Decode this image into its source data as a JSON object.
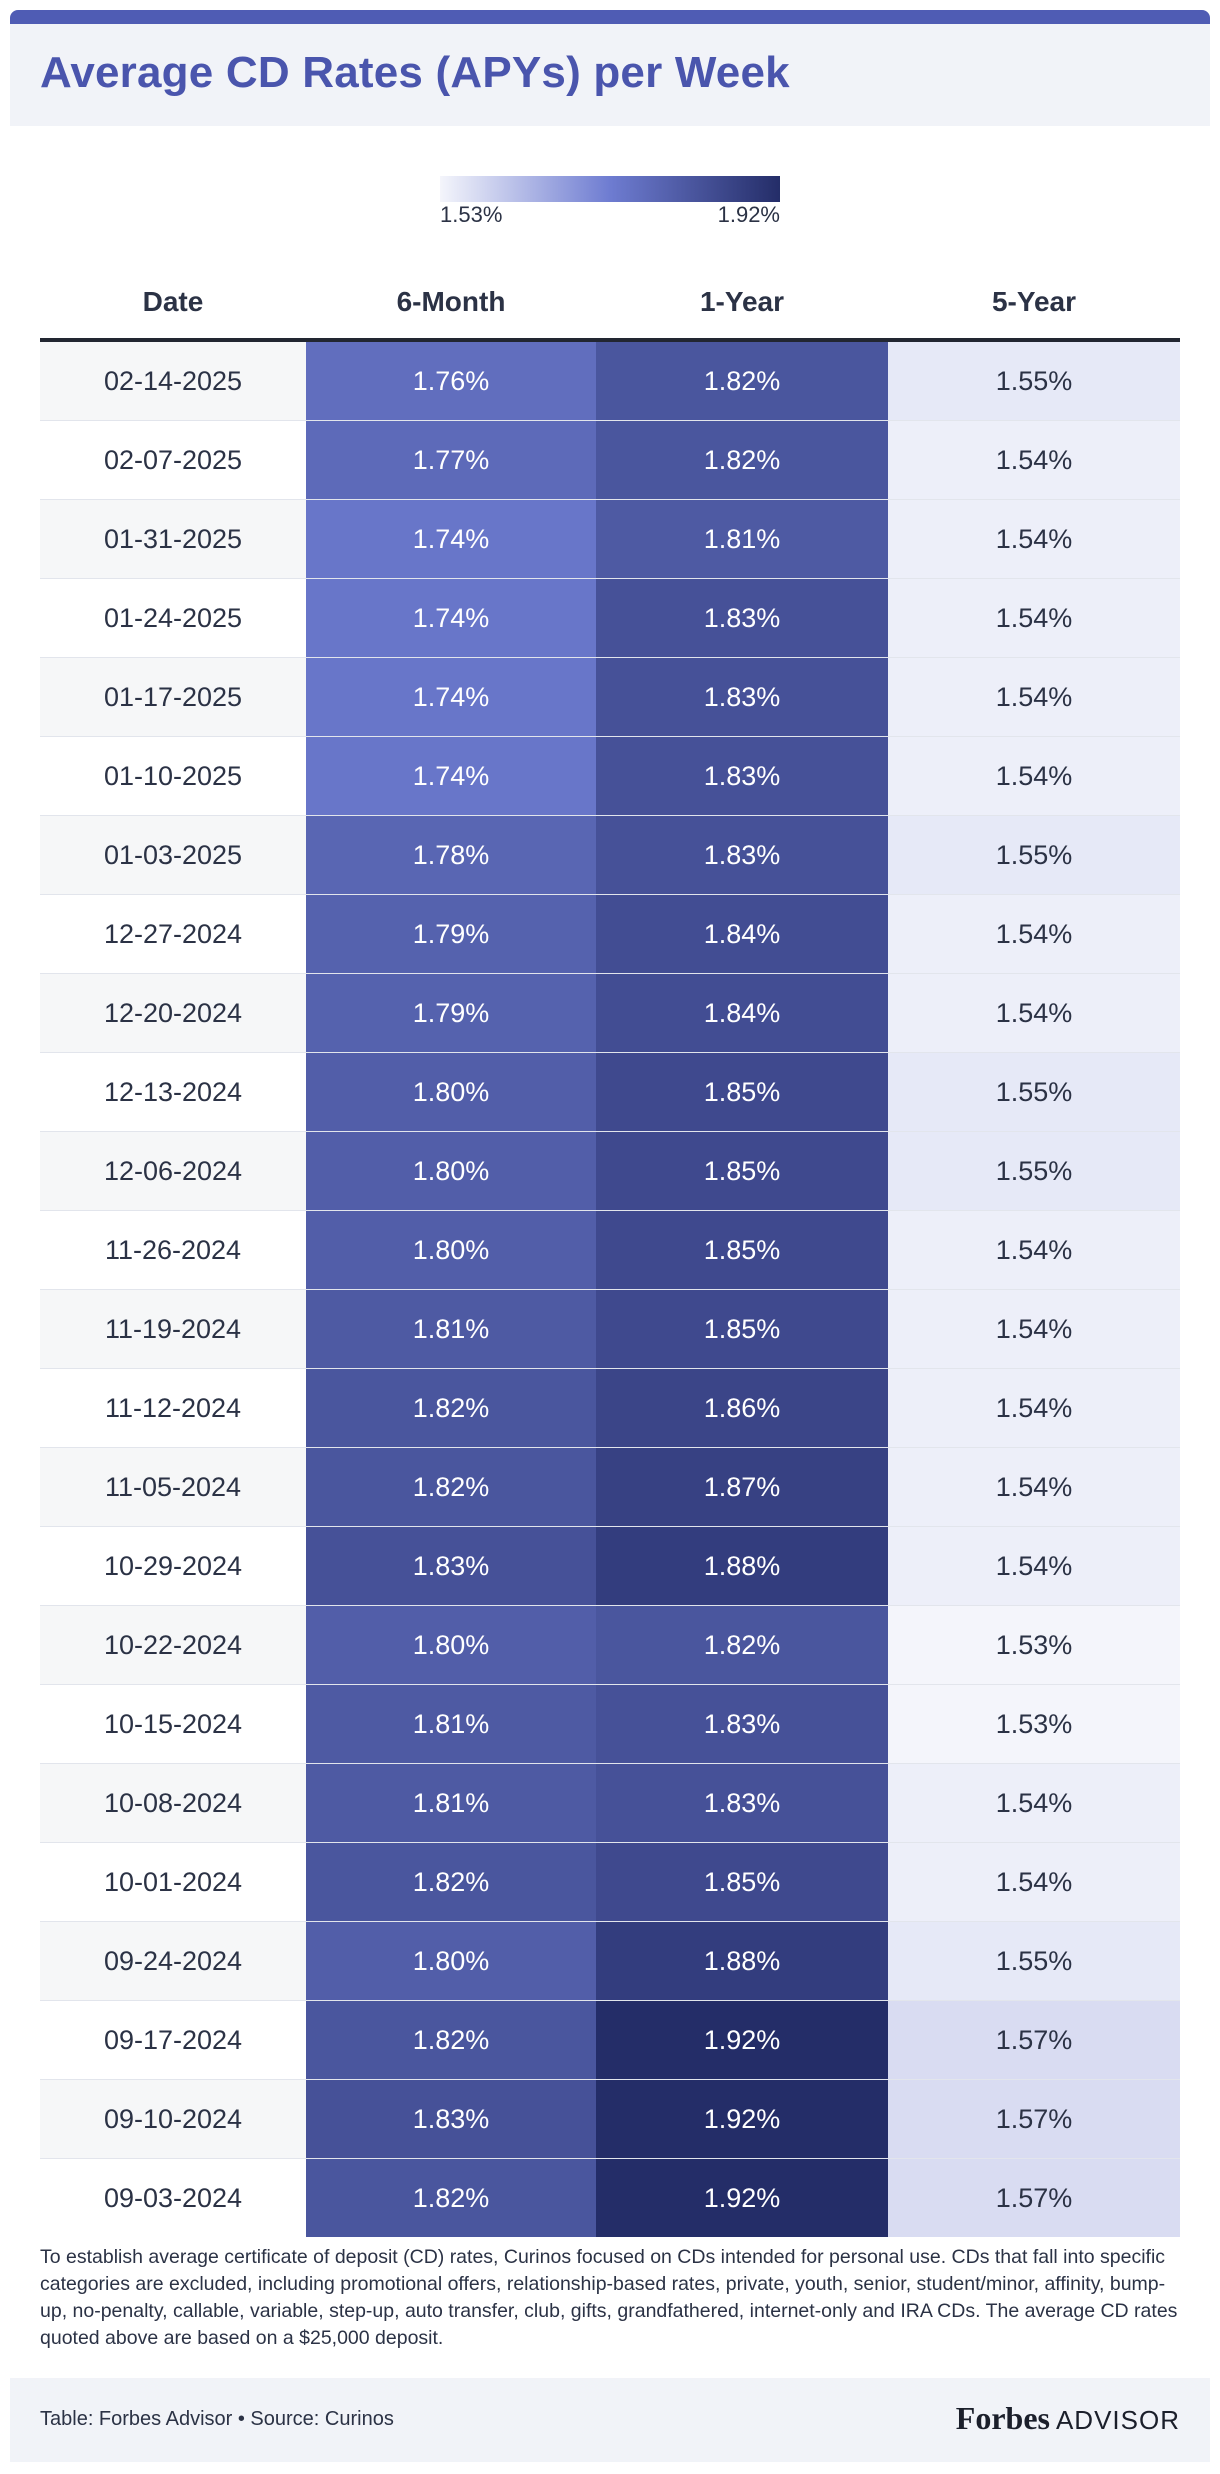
{
  "title": "Average CD Rates (APYs) per Week",
  "legend": {
    "min_label": "1.53%",
    "max_label": "1.92%",
    "min_value": 1.53,
    "max_value": 1.92
  },
  "chart_data": {
    "type": "table",
    "title": "Average CD Rates (APYs) per Week",
    "columns": [
      "Date",
      "6-Month",
      "1-Year",
      "5-Year"
    ],
    "rows": [
      {
        "date": "02-14-2025",
        "m6": "1.76%",
        "y1": "1.82%",
        "y5": "1.55%"
      },
      {
        "date": "02-07-2025",
        "m6": "1.77%",
        "y1": "1.82%",
        "y5": "1.54%"
      },
      {
        "date": "01-31-2025",
        "m6": "1.74%",
        "y1": "1.81%",
        "y5": "1.54%"
      },
      {
        "date": "01-24-2025",
        "m6": "1.74%",
        "y1": "1.83%",
        "y5": "1.54%"
      },
      {
        "date": "01-17-2025",
        "m6": "1.74%",
        "y1": "1.83%",
        "y5": "1.54%"
      },
      {
        "date": "01-10-2025",
        "m6": "1.74%",
        "y1": "1.83%",
        "y5": "1.54%"
      },
      {
        "date": "01-03-2025",
        "m6": "1.78%",
        "y1": "1.83%",
        "y5": "1.55%"
      },
      {
        "date": "12-27-2024",
        "m6": "1.79%",
        "y1": "1.84%",
        "y5": "1.54%"
      },
      {
        "date": "12-20-2024",
        "m6": "1.79%",
        "y1": "1.84%",
        "y5": "1.54%"
      },
      {
        "date": "12-13-2024",
        "m6": "1.80%",
        "y1": "1.85%",
        "y5": "1.55%"
      },
      {
        "date": "12-06-2024",
        "m6": "1.80%",
        "y1": "1.85%",
        "y5": "1.55%"
      },
      {
        "date": "11-26-2024",
        "m6": "1.80%",
        "y1": "1.85%",
        "y5": "1.54%"
      },
      {
        "date": "11-19-2024",
        "m6": "1.81%",
        "y1": "1.85%",
        "y5": "1.54%"
      },
      {
        "date": "11-12-2024",
        "m6": "1.82%",
        "y1": "1.86%",
        "y5": "1.54%"
      },
      {
        "date": "11-05-2024",
        "m6": "1.82%",
        "y1": "1.87%",
        "y5": "1.54%"
      },
      {
        "date": "10-29-2024",
        "m6": "1.83%",
        "y1": "1.88%",
        "y5": "1.54%"
      },
      {
        "date": "10-22-2024",
        "m6": "1.80%",
        "y1": "1.82%",
        "y5": "1.53%"
      },
      {
        "date": "10-15-2024",
        "m6": "1.81%",
        "y1": "1.83%",
        "y5": "1.53%"
      },
      {
        "date": "10-08-2024",
        "m6": "1.81%",
        "y1": "1.83%",
        "y5": "1.54%"
      },
      {
        "date": "10-01-2024",
        "m6": "1.82%",
        "y1": "1.85%",
        "y5": "1.54%"
      },
      {
        "date": "09-24-2024",
        "m6": "1.80%",
        "y1": "1.88%",
        "y5": "1.55%"
      },
      {
        "date": "09-17-2024",
        "m6": "1.82%",
        "y1": "1.92%",
        "y5": "1.57%"
      },
      {
        "date": "09-10-2024",
        "m6": "1.83%",
        "y1": "1.92%",
        "y5": "1.57%"
      },
      {
        "date": "09-03-2024",
        "m6": "1.82%",
        "y1": "1.92%",
        "y5": "1.57%"
      }
    ]
  },
  "colors": {
    "header_bar": "#4f5cb4",
    "title_text": "#4a55ad",
    "light": "#f4f5fb",
    "mid": "#6e7cd1",
    "dark": "#242d68",
    "date_alt_row": "#f6f7f8"
  },
  "footnote": "To establish average certificate of deposit (CD) rates, Curinos focused on CDs intended for personal use. CDs that fall into specific categories are excluded, including promotional offers, relationship-based rates, private, youth, senior, student/minor, affinity, bump-up, no-penalty, callable, variable, step-up, auto transfer, club, gifts, grandfathered, internet-only and IRA CDs. The average CD rates quoted above are based on a $25,000 deposit.",
  "footer": {
    "credit": "Table: Forbes Advisor • Source: Curinos",
    "brand_name": "Forbes",
    "brand_suffix": "ADVISOR"
  }
}
